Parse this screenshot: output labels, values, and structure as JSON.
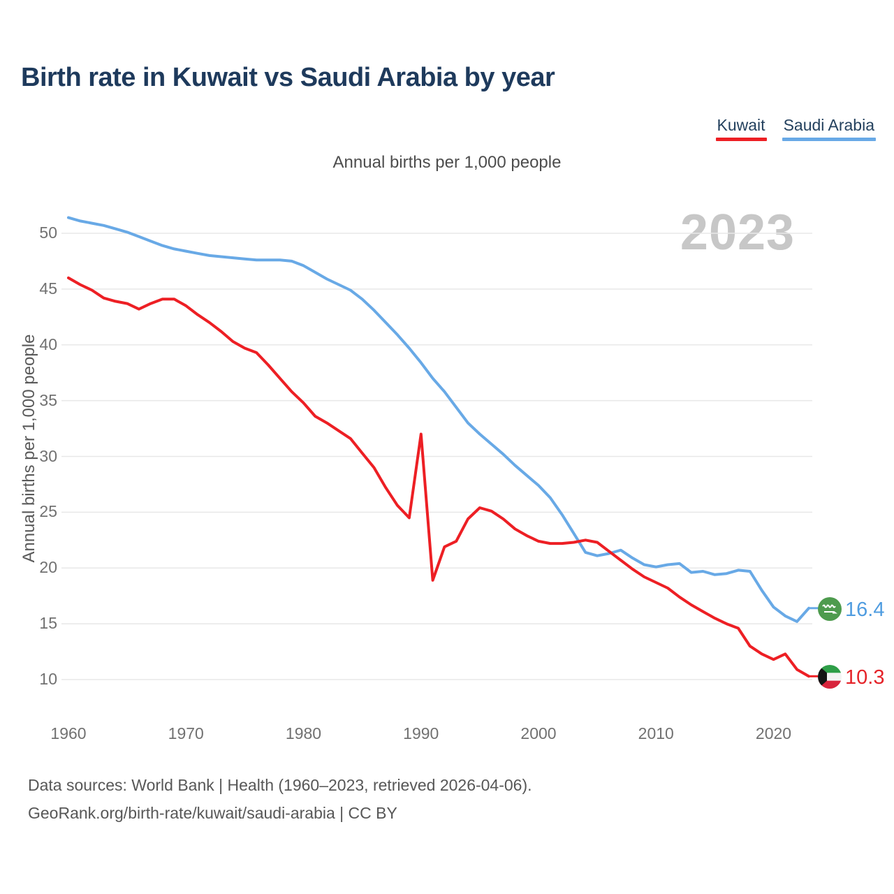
{
  "title": "Birth rate in Kuwait vs Saudi Arabia by year",
  "subtitle": "Annual births per 1,000 people",
  "watermark": "2023",
  "legend": [
    {
      "label": "Kuwait",
      "color": "#ed1f24"
    },
    {
      "label": "Saudi Arabia",
      "color": "#68a9e6"
    }
  ],
  "y_axis": {
    "title": "Annual births per 1,000 people",
    "ticks": [
      10,
      15,
      20,
      25,
      30,
      35,
      40,
      45,
      50
    ]
  },
  "x_axis": {
    "ticks": [
      1960,
      1970,
      1980,
      1990,
      2000,
      2010,
      2020
    ]
  },
  "end_labels": [
    {
      "series": "Saudi Arabia",
      "value": "16.4",
      "flag_icon": "saudi-arabia-flag",
      "color": "#4f9ce0"
    },
    {
      "series": "Kuwait",
      "value": "10.3",
      "flag_icon": "kuwait-flag",
      "color": "#e52329"
    }
  ],
  "footer": {
    "line1": "Data sources: World Bank | Health (1960–2023, retrieved 2026-04-06).",
    "line2": "GeoRank.org/birth-rate/kuwait/saudi-arabia | CC BY"
  },
  "chart_data": {
    "type": "line",
    "title": "Birth rate in Kuwait vs Saudi Arabia by year",
    "xlabel": "",
    "ylabel": "Annual births per 1,000 people",
    "ylim": [
      8.5,
      52
    ],
    "grid": "horizontal",
    "legend_position": "top-right",
    "x": [
      1960,
      1961,
      1962,
      1963,
      1964,
      1965,
      1966,
      1967,
      1968,
      1969,
      1970,
      1971,
      1972,
      1973,
      1974,
      1975,
      1976,
      1977,
      1978,
      1979,
      1980,
      1981,
      1982,
      1983,
      1984,
      1985,
      1986,
      1987,
      1988,
      1989,
      1990,
      1991,
      1992,
      1993,
      1994,
      1995,
      1996,
      1997,
      1998,
      1999,
      2000,
      2001,
      2002,
      2003,
      2004,
      2005,
      2006,
      2007,
      2008,
      2009,
      2010,
      2011,
      2012,
      2013,
      2014,
      2015,
      2016,
      2017,
      2018,
      2019,
      2020,
      2021,
      2022,
      2023
    ],
    "series": [
      {
        "name": "Saudi Arabia",
        "color": "#68a9e6",
        "values": [
          51.4,
          51.1,
          50.9,
          50.7,
          50.4,
          50.1,
          49.7,
          49.3,
          48.9,
          48.6,
          48.4,
          48.2,
          48.0,
          47.9,
          47.8,
          47.7,
          47.6,
          47.6,
          47.6,
          47.5,
          47.1,
          46.5,
          45.9,
          45.4,
          44.9,
          44.1,
          43.1,
          42.0,
          40.9,
          39.7,
          38.4,
          37.0,
          35.8,
          34.4,
          33.0,
          32.0,
          31.1,
          30.2,
          29.2,
          28.3,
          27.4,
          26.3,
          24.8,
          23.1,
          21.4,
          21.1,
          21.3,
          21.6,
          20.9,
          20.3,
          20.1,
          20.3,
          20.4,
          19.6,
          19.7,
          19.4,
          19.5,
          19.8,
          19.7,
          18.0,
          16.5,
          15.7,
          15.2,
          16.4
        ]
      },
      {
        "name": "Kuwait",
        "color": "#ed1f24",
        "values": [
          46.0,
          45.4,
          44.9,
          44.2,
          43.9,
          43.7,
          43.2,
          43.7,
          44.1,
          44.1,
          43.5,
          42.7,
          42.0,
          41.2,
          40.3,
          39.7,
          39.3,
          38.2,
          37.0,
          35.8,
          34.8,
          33.6,
          33.0,
          32.3,
          31.6,
          30.3,
          29.0,
          27.2,
          25.6,
          24.5,
          32.0,
          18.9,
          21.9,
          22.4,
          24.4,
          25.4,
          25.1,
          24.4,
          23.5,
          22.9,
          22.4,
          22.2,
          22.2,
          22.3,
          22.5,
          22.3,
          21.5,
          20.7,
          19.9,
          19.2,
          18.7,
          18.2,
          17.4,
          16.7,
          16.1,
          15.5,
          15.0,
          14.6,
          13.0,
          12.3,
          11.8,
          12.3,
          10.9,
          10.3
        ]
      }
    ]
  }
}
